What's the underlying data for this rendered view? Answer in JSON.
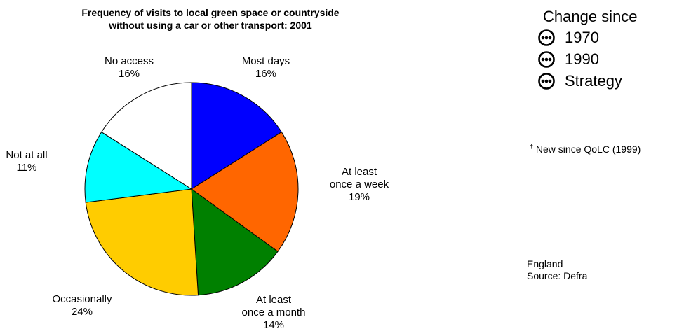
{
  "chart_data": {
    "type": "pie",
    "title_lines": [
      "Frequency of visits to local green space or countryside",
      "without using a car or other transport: 2001"
    ],
    "slices": [
      {
        "label_lines": [
          "Most days"
        ],
        "value": 16,
        "value_label": "16%",
        "color": "#0000ff"
      },
      {
        "label_lines": [
          "At least",
          "once a week"
        ],
        "value": 19,
        "value_label": "19%",
        "color": "#ff6600"
      },
      {
        "label_lines": [
          "At least",
          "once a month"
        ],
        "value": 14,
        "value_label": "14%",
        "color": "#008000"
      },
      {
        "label_lines": [
          "Occasionally"
        ],
        "value": 24,
        "value_label": "24%",
        "color": "#ffcc00"
      },
      {
        "label_lines": [
          "Not at all"
        ],
        "value": 11,
        "value_label": "11%",
        "color": "#00ffff"
      },
      {
        "label_lines": [
          "No access"
        ],
        "value": 16,
        "value_label": "16%",
        "color": "#ffffff"
      }
    ],
    "start_position": "top",
    "direction": "clockwise"
  },
  "legend": {
    "title": "Change since",
    "items": [
      {
        "label": "1970",
        "icon": "neutral-dots-icon"
      },
      {
        "label": "1990",
        "icon": "neutral-dots-icon"
      },
      {
        "label": "Strategy",
        "icon": "neutral-dots-icon"
      }
    ]
  },
  "footnote": {
    "mark": "†",
    "text": "New since QoLC (1999)"
  },
  "meta": {
    "region": "England",
    "source": "Source: Defra"
  }
}
